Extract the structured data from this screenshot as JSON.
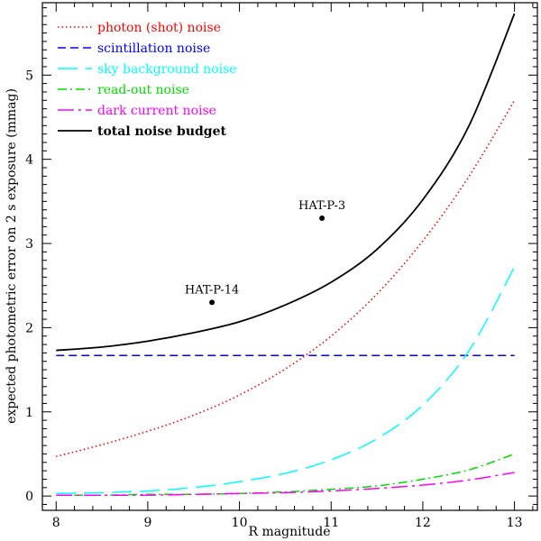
{
  "chart_data": {
    "type": "line",
    "title": "",
    "xlabel": "R magnitude",
    "ylabel": "expected photometric error on 2 s exposure (mmag)",
    "xlim": [
      7.85,
      13.25
    ],
    "ylim": [
      -0.17,
      5.86
    ],
    "xticks": [
      8,
      9,
      10,
      11,
      12,
      13
    ],
    "yticks": [
      0,
      1,
      2,
      3,
      4,
      5
    ],
    "legend_position": "top-left",
    "series": [
      {
        "name": "photon (shot) noise",
        "color": "#ff0000",
        "style": "dotted",
        "x": [
          8.0,
          8.5,
          9.0,
          9.5,
          10.0,
          10.5,
          11.0,
          11.5,
          12.0,
          12.5,
          13.0
        ],
        "y": [
          0.47,
          0.61,
          0.77,
          0.96,
          1.2,
          1.51,
          1.9,
          2.4,
          3.03,
          3.79,
          4.7
        ]
      },
      {
        "name": "scintillation noise",
        "color": "#0000ff",
        "style": "dashed",
        "x": [
          8.0,
          13.0
        ],
        "y": [
          1.67,
          1.67
        ]
      },
      {
        "name": "sky background noise",
        "color": "#00ffff",
        "style": "longdash",
        "x": [
          8.0,
          8.5,
          9.0,
          9.5,
          10.0,
          10.5,
          11.0,
          11.5,
          12.0,
          12.5,
          13.0
        ],
        "y": [
          0.03,
          0.04,
          0.06,
          0.1,
          0.17,
          0.27,
          0.43,
          0.68,
          1.08,
          1.72,
          2.72
        ]
      },
      {
        "name": "read-out noise",
        "color": "#00dd00",
        "style": "dashdot",
        "x": [
          8.0,
          8.5,
          9.0,
          9.5,
          10.0,
          10.5,
          11.0,
          11.5,
          12.0,
          12.5,
          13.0
        ],
        "y": [
          0.01,
          0.01,
          0.02,
          0.02,
          0.03,
          0.05,
          0.08,
          0.12,
          0.2,
          0.31,
          0.5
        ]
      },
      {
        "name": "dark current noise",
        "color": "#ff00ff",
        "style": "longdashdot",
        "x": [
          8.0,
          8.5,
          9.0,
          9.5,
          10.0,
          10.5,
          11.0,
          11.5,
          12.0,
          12.5,
          13.0
        ],
        "y": [
          0.01,
          0.01,
          0.01,
          0.02,
          0.03,
          0.04,
          0.06,
          0.09,
          0.13,
          0.19,
          0.28
        ]
      },
      {
        "name": "total noise budget",
        "color": "#000000",
        "style": "solid",
        "bold_label": true,
        "x": [
          8.0,
          8.5,
          9.0,
          9.5,
          10.0,
          10.5,
          11.0,
          11.5,
          12.0,
          12.5,
          13.0
        ],
        "y": [
          1.73,
          1.77,
          1.84,
          1.94,
          2.07,
          2.27,
          2.54,
          2.93,
          3.52,
          4.39,
          5.73
        ]
      }
    ],
    "annotations": [
      {
        "label": "HAT-P-14",
        "x": 9.7,
        "y": 2.3
      },
      {
        "label": "HAT-P-3",
        "x": 10.9,
        "y": 3.3
      }
    ]
  }
}
